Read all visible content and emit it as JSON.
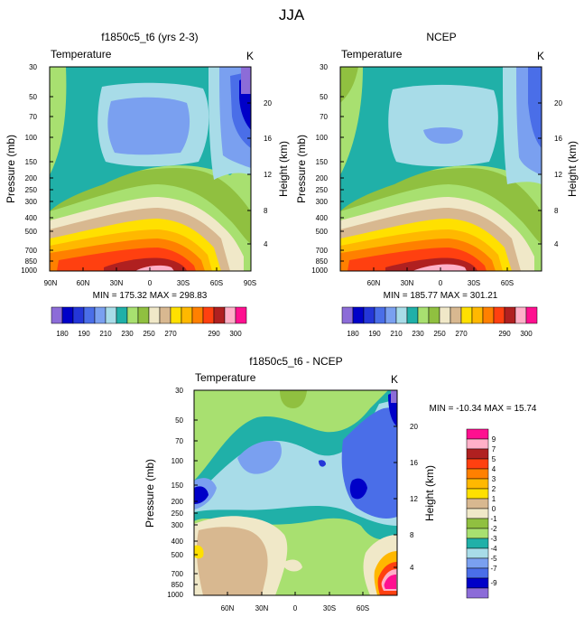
{
  "figure": {
    "title": "JJA"
  },
  "colors": {
    "c180": "#8c6cd8",
    "c185": "#0000c8",
    "c190": "#2436d8",
    "c200": "#4a6ee8",
    "c205": "#7aa0f0",
    "c210": "#a8dce8",
    "c220": "#20b0a8",
    "c230": "#a8e070",
    "c240": "#90c040",
    "c250": "#f0e8c8",
    "c260": "#d8b890",
    "c270": "#ffe000",
    "c275": "#ffb800",
    "c280": "#ff8000",
    "c285": "#ff4010",
    "c290": "#b02020",
    "c295": "#ffb0c8",
    "c300": "#ff1090",
    "d1": "#ffb0c8",
    "d2": "#d8b890"
  },
  "chart_data": [
    {
      "type": "heatmap",
      "title": "f1850c5_t6 (yrs 2-3)",
      "left_label": "Temperature",
      "right_label": "K",
      "ylabel": "Pressure (mb)",
      "y2label": "Height (km)",
      "x_ticks": [
        "90N",
        "60N",
        "30N",
        "0",
        "30S",
        "60S",
        "90S"
      ],
      "y_ticks": [
        "30",
        "50",
        "70",
        "100",
        "150",
        "200",
        "250",
        "300",
        "400",
        "500",
        "700",
        "850",
        "1000"
      ],
      "height_ticks": [
        "20",
        "16",
        "12",
        "8",
        "4"
      ],
      "stats": "MIN = 175.32  MAX = 298.83",
      "colorbar_labels": [
        "180",
        "190",
        "210",
        "230",
        "250",
        "270",
        "290",
        "300"
      ]
    },
    {
      "type": "heatmap",
      "title": "NCEP",
      "left_label": "Temperature",
      "right_label": "K",
      "ylabel": "Pressure (mb)",
      "y2label": "Height (km)",
      "x_ticks": [
        "60N",
        "30N",
        "0",
        "30S",
        "60S"
      ],
      "y_ticks": [
        "30",
        "50",
        "70",
        "100",
        "150",
        "200",
        "250",
        "300",
        "400",
        "500",
        "700",
        "850",
        "1000"
      ],
      "height_ticks": [
        "20",
        "16",
        "12",
        "8",
        "4"
      ],
      "stats": "MIN = 185.77  MAX = 301.21",
      "colorbar_labels": [
        "180",
        "190",
        "210",
        "230",
        "250",
        "270",
        "290",
        "300"
      ]
    },
    {
      "type": "heatmap",
      "title": "f1850c5_t6 - NCEP",
      "left_label": "Temperature",
      "right_label": "K",
      "ylabel": "Pressure (mb)",
      "y2label": "Height (km)",
      "x_ticks": [
        "60N",
        "30N",
        "0",
        "30S",
        "60S"
      ],
      "y_ticks": [
        "30",
        "50",
        "70",
        "100",
        "150",
        "200",
        "250",
        "300",
        "400",
        "500",
        "700",
        "850",
        "1000"
      ],
      "height_ticks": [
        "20",
        "16",
        "12",
        "8",
        "4"
      ],
      "stats": "MIN = -10.34  MAX =  15.74",
      "colorbar_labels": [
        "9",
        "7",
        "5",
        "4",
        "3",
        "2",
        "1",
        "0",
        "-1",
        "-2",
        "-3",
        "-4",
        "-5",
        "-7",
        "-9"
      ]
    }
  ]
}
